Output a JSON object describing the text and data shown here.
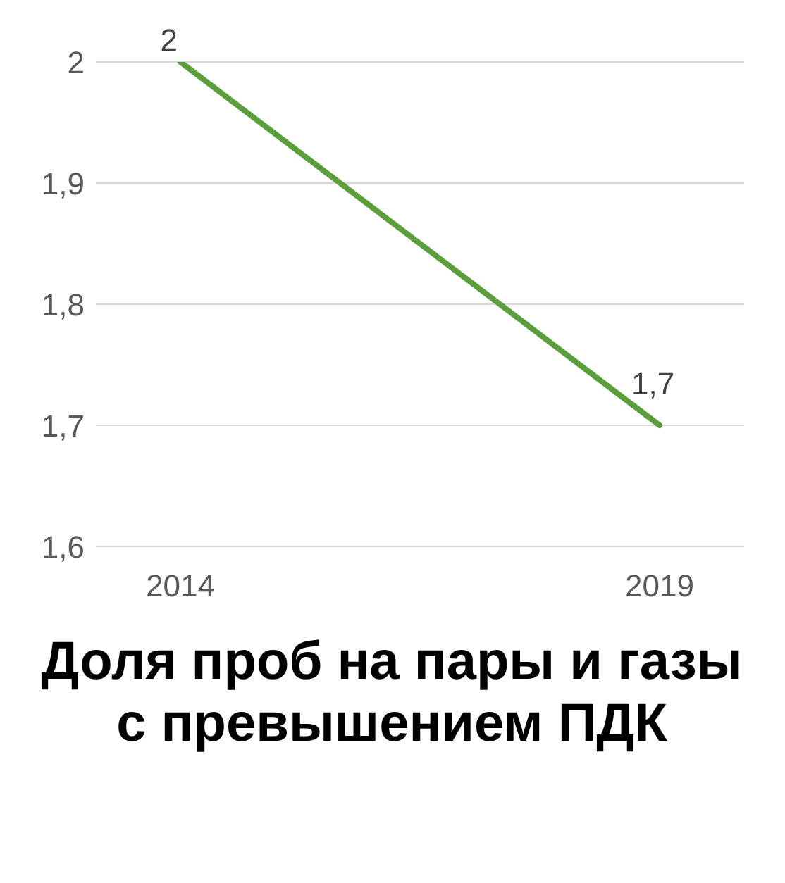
{
  "chart_data": {
    "type": "line",
    "title": "Доля проб на пары и газы с превышением ПДК",
    "categories": [
      "2014",
      "2019"
    ],
    "series": [
      {
        "color": "#5b9e3c",
        "values": [
          2,
          1.7
        ]
      }
    ],
    "value_labels": [
      "2",
      "1,7"
    ],
    "ylim": [
      1.6,
      2
    ],
    "yticks": [
      {
        "value": 1.6,
        "label": "1,6"
      },
      {
        "value": 1.7,
        "label": "1,7"
      },
      {
        "value": 1.8,
        "label": "1,8"
      },
      {
        "value": 1.9,
        "label": "1,9"
      },
      2
    ],
    "grid": "y",
    "marker": "none",
    "line_style": "solid",
    "legend": false
  }
}
